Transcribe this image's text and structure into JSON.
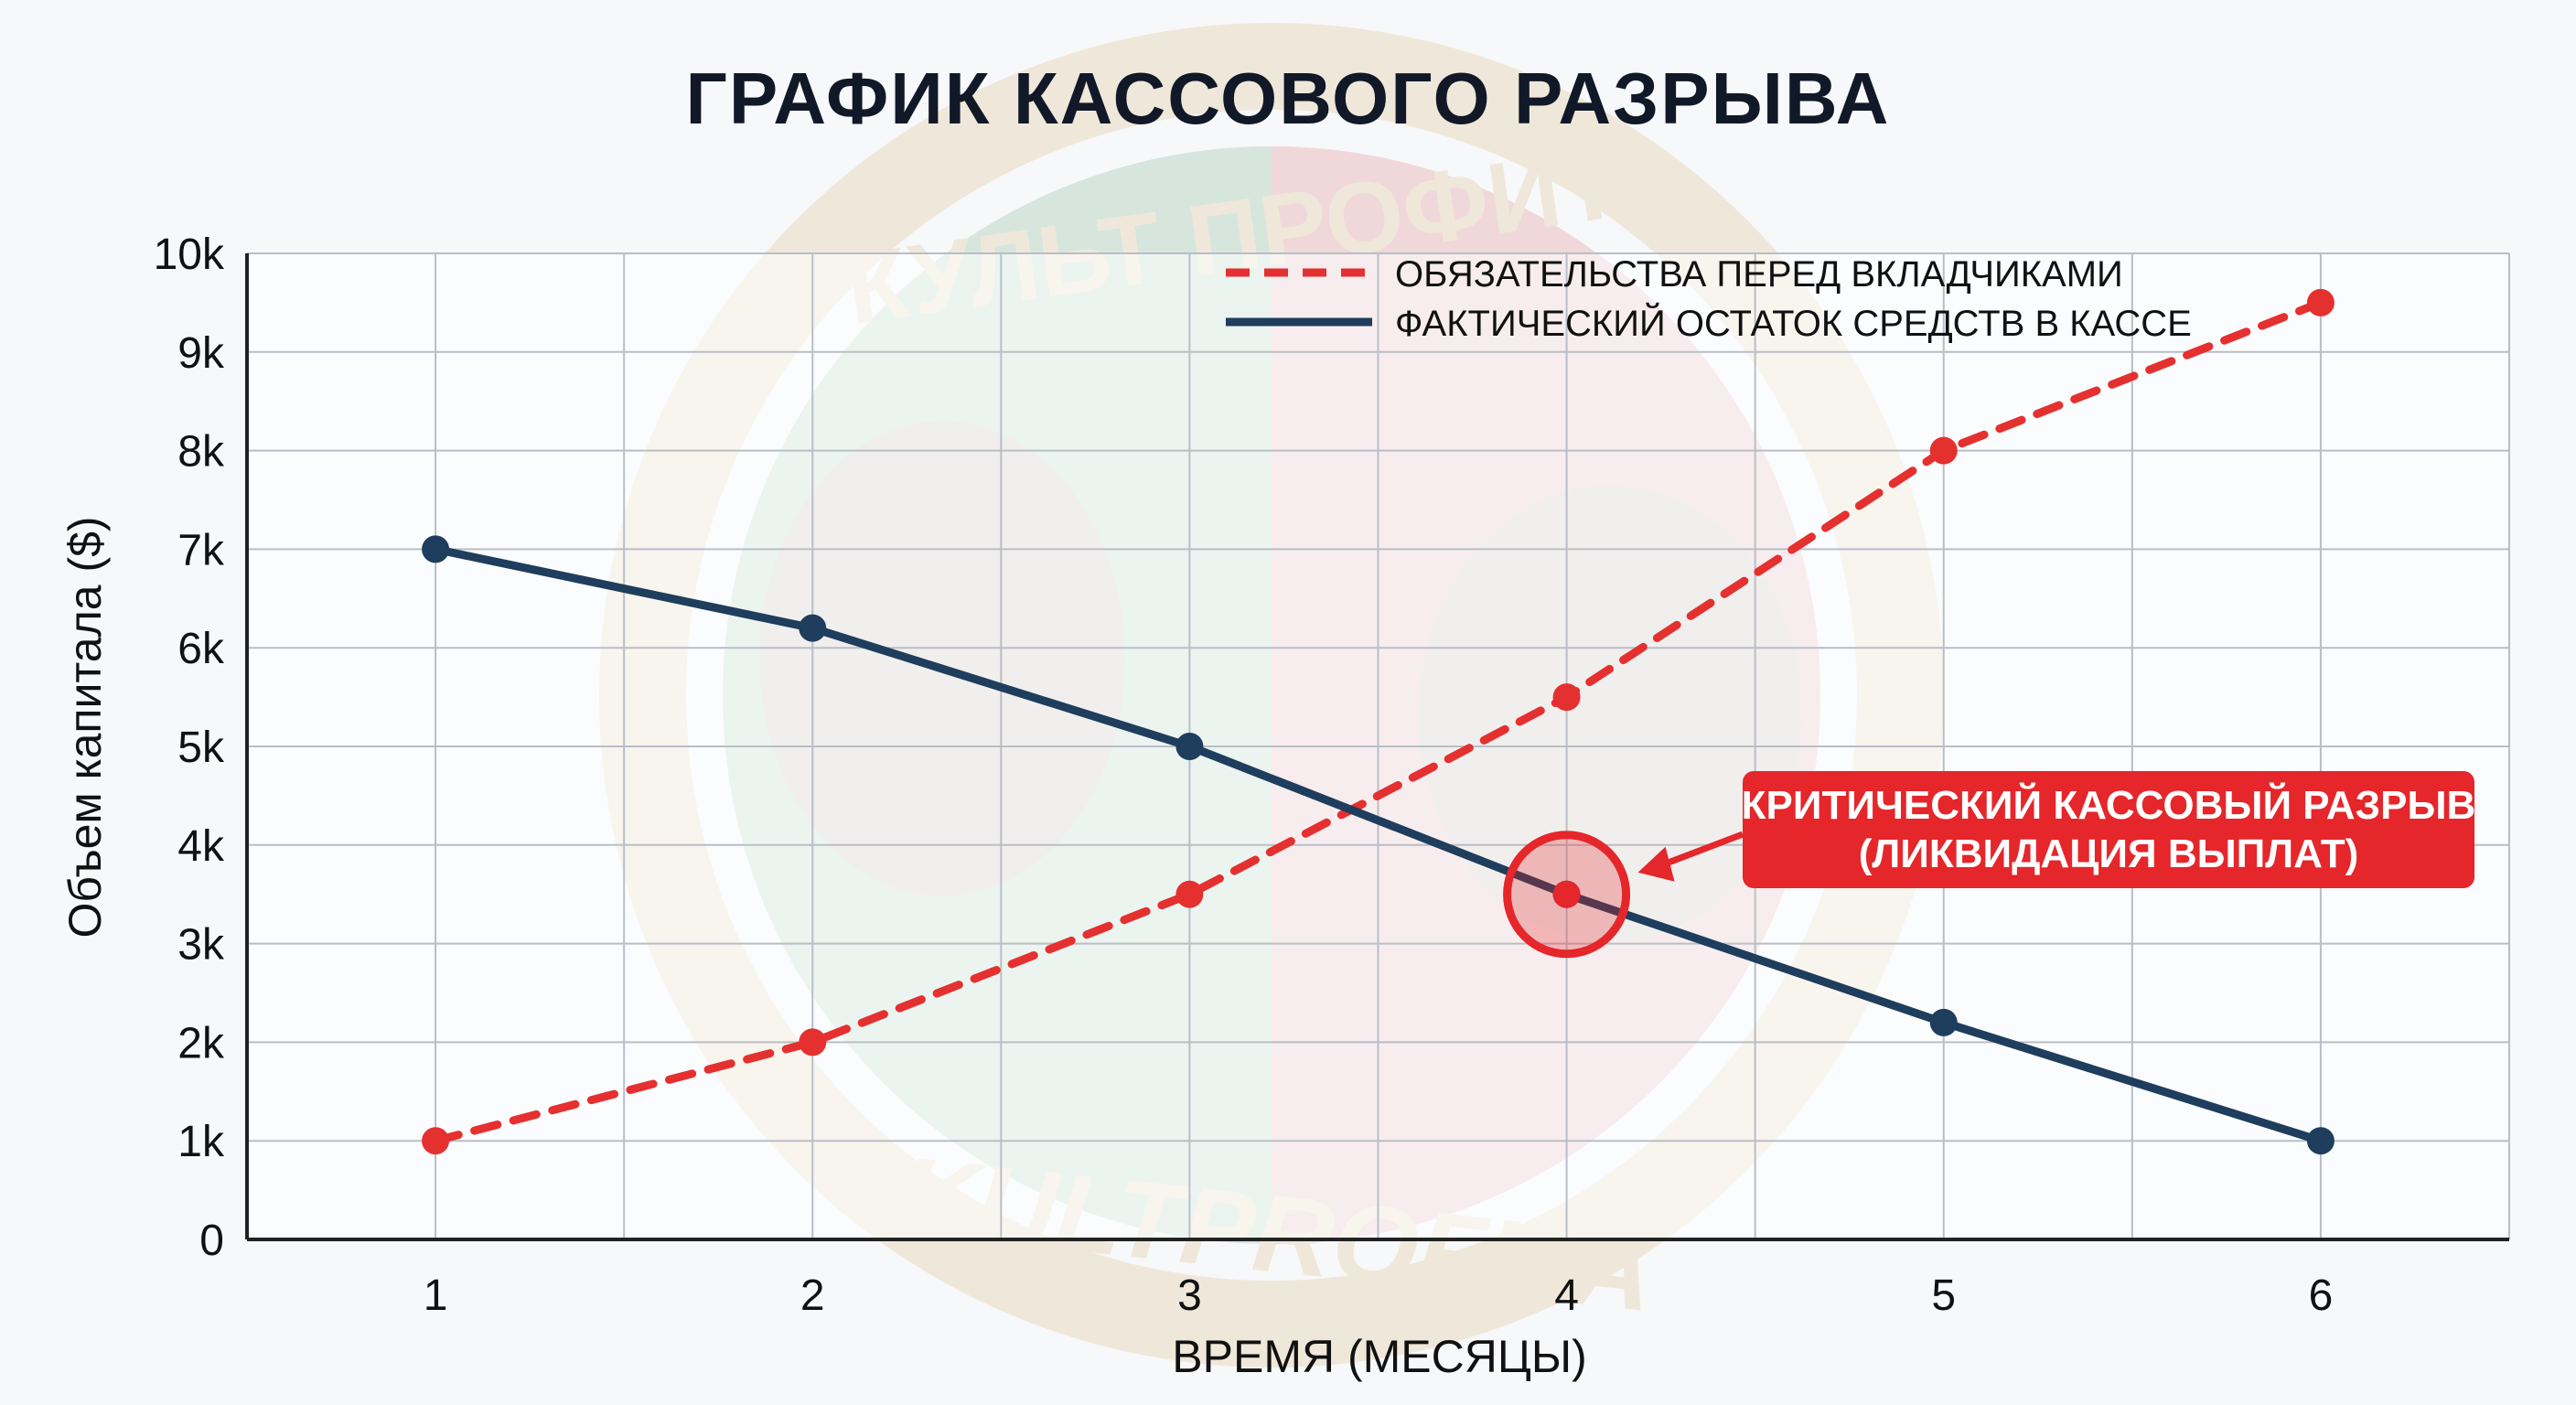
{
  "chart_data": {
    "type": "line",
    "title": "ГРАФИК КАССОВОГО РАЗРЫВА",
    "xlabel": "ВРЕМЯ (МЕСЯЦЫ)",
    "ylabel": "Объем капитала ($)",
    "x": [
      1,
      2,
      3,
      4,
      5,
      6
    ],
    "xlim": [
      0.5,
      6.5
    ],
    "ylim": [
      0,
      10000
    ],
    "y_ticks": [
      0,
      1000,
      2000,
      3000,
      4000,
      5000,
      6000,
      7000,
      8000,
      9000,
      10000
    ],
    "y_tick_labels": [
      "0",
      "1k",
      "2k",
      "3k",
      "4k",
      "5k",
      "6k",
      "7k",
      "8k",
      "9k",
      "10k"
    ],
    "x_tick_labels": [
      "1",
      "2",
      "3",
      "4",
      "5",
      "6"
    ],
    "grid": true,
    "legend_position": "top-right",
    "series": [
      {
        "name": "ОБЯЗАТЕЛЬСТВА ПЕРЕД ВКЛАДЧИКАМИ",
        "values": [
          1000,
          2000,
          3500,
          5500,
          8000,
          9500
        ],
        "color": "#e53030",
        "style": "dashed"
      },
      {
        "name": "ФАКТИЧЕСКИЙ ОСТАТОК СРЕДСТВ В КАССЕ",
        "values": [
          7000,
          6200,
          5000,
          3500,
          2200,
          1000
        ],
        "color": "#1f3d5c",
        "style": "solid"
      }
    ],
    "annotation": {
      "lines": [
        "КРИТИЧЕСКИЙ КАССОВЫЙ РАЗРЫВ",
        "(ЛИКВИДАЦИЯ ВЫПЛАТ)"
      ],
      "x": 4,
      "y": 3500,
      "color": "#e5262a"
    }
  },
  "watermark": {
    "top_text": "КУЛЬТ ПРОФИТА",
    "bottom_text": "KULTPROFITA"
  }
}
